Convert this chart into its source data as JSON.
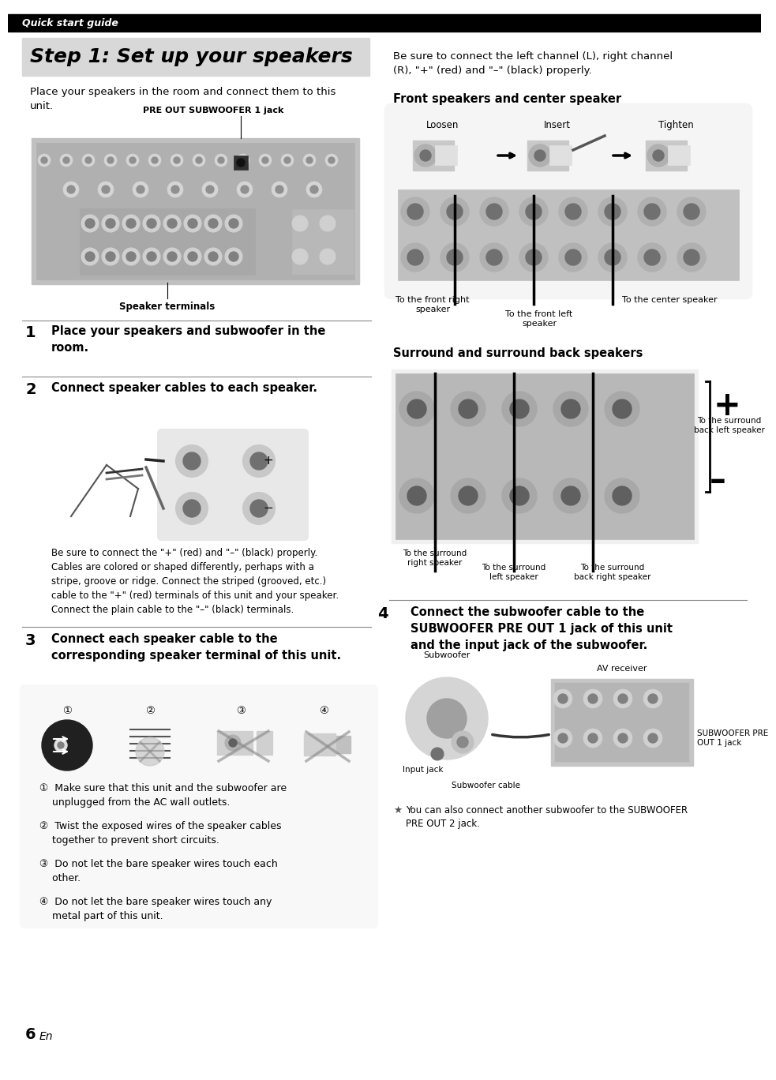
{
  "page_bg": "#ffffff",
  "header_bg": "#000000",
  "header_text": "Quick start guide",
  "header_text_color": "#ffffff",
  "title_bg": "#d8d8d8",
  "title_text": "Step 1: Set up your speakers",
  "title_text_color": "#000000",
  "intro_text": "Place your speakers in the room and connect them to this\nunit.",
  "pre_out_label": "PRE OUT SUBWOOFER 1 jack",
  "speaker_terminals_label": "Speaker terminals",
  "step1_num": "1",
  "step1_text": "Place your speakers and subwoofer in the\nroom.",
  "step2_num": "2",
  "step2_text": "Connect speaker cables to each speaker.",
  "step2_body": "Be sure to connect the \"+\" (red) and \"–\" (black) properly.\nCables are colored or shaped differently, perhaps with a\nstripe, groove or ridge. Connect the striped (grooved, etc.)\ncable to the \"+\" (red) terminals of this unit and your speaker.\nConnect the plain cable to the \"–\" (black) terminals.",
  "step3_num": "3",
  "step3_text": "Connect each speaker cable to the\ncorresponding speaker terminal of this unit.",
  "step3_item1": "①  Make sure that this unit and the subwoofer are\n    unplugged from the AC wall outlets.",
  "step3_item2": "②  Twist the exposed wires of the speaker cables\n    together to prevent short circuits.",
  "step3_item3": "③  Do not let the bare speaker wires touch each\n    other.",
  "step3_item4": "④  Do not let the bare speaker wires touch any\n    metal part of this unit.",
  "step4_num": "4",
  "step4_text": "Connect the subwoofer cable to the\nSUBWOOFER PRE OUT 1 jack of this unit\nand the input jack of the subwoofer.",
  "right_intro": "Be sure to connect the left channel (L), right channel\n(R), \"+\" (red) and \"–\" (black) properly.",
  "right_sec1_title": "Front speakers and center speaker",
  "loosen": "Loosen",
  "insert": "Insert",
  "tighten": "Tighten",
  "front_right": "To the front right\nspeaker",
  "front_left": "To the front left\nspeaker",
  "center": "To the center speaker",
  "right_sec2_title": "Surround and surround back speakers",
  "surround_right": "To the surround\nright speaker",
  "surround_left": "To the surround\nleft speaker",
  "surround_back_right": "To the surround\nback right speaker",
  "surround_back_left": "To the surround\nback left speaker",
  "label_subwoofer": "Subwoofer",
  "label_av_receiver": "AV receiver",
  "label_input_jack": "Input jack",
  "label_subwoofer_cable": "Subwoofer cable",
  "label_sub_pre_out": "SUBWOOFER PRE\nOUT 1 jack",
  "note_icon": "★",
  "note_text": "You can also connect another subwoofer to the SUBWOOFER\nPRE OUT 2 jack.",
  "page_num": "6",
  "page_suffix": "En",
  "divider_color": "#888888",
  "box_edge_color": "#555555"
}
